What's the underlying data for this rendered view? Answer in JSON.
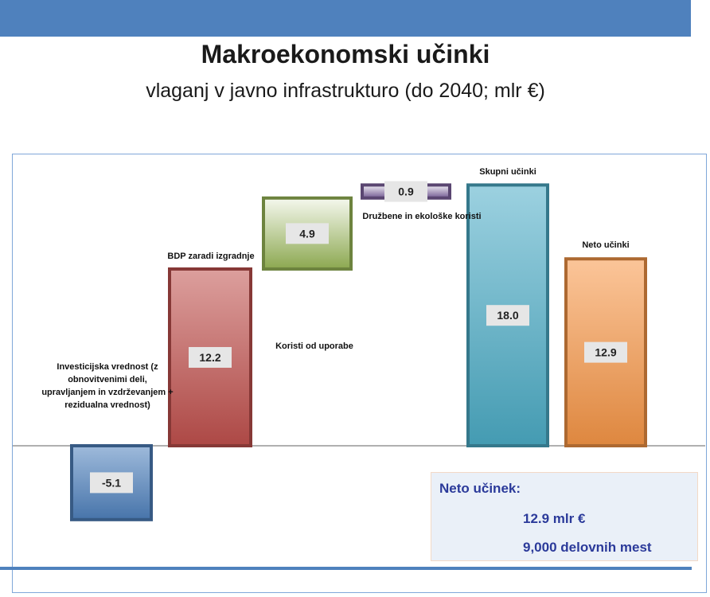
{
  "header": {
    "title": "Makroekonomski učinki",
    "subtitle": "vlaganj v javno infrastrukturo (do 2040; mlr €)",
    "banner_color": "#4f81bd"
  },
  "chart_data": {
    "type": "waterfall",
    "categories": [
      "Investicijska vrednost (z obnovitvenimi deli, upravljanjem in vzdrževanjem + rezidualna vrednost)",
      "BDP zaradi izgradnje",
      "Koristi od uporabe",
      "Družbene in ekološke koristi",
      "Skupni učinki",
      "Neto učinki"
    ],
    "values": [
      -5.1,
      12.2,
      4.9,
      0.9,
      18.0,
      12.9
    ],
    "labels": [
      "-5.1",
      "12.2",
      "4.9",
      "0.9",
      "18.0",
      "12.9"
    ],
    "kinds": [
      "delta",
      "delta-from-zero",
      "delta",
      "delta",
      "total",
      "total"
    ],
    "colors": [
      "#4f81bd",
      "#c0504d",
      "#9bbb59",
      "#8064a2",
      "#4bacc6",
      "#f79646"
    ],
    "grid": false,
    "legend": "none"
  },
  "summary": {
    "title": "Neto učinek:",
    "value": "12.9 mlr €",
    "jobs": "9,000 delovnih mest"
  }
}
